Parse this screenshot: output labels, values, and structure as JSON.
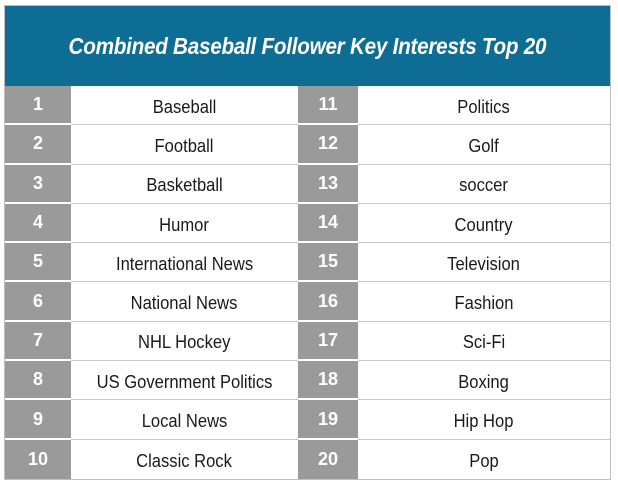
{
  "title": "Combined Baseball Follower Key Interests Top 20",
  "colors": {
    "header_bg": "#0d6d95",
    "number_bg": "#9a9a9a"
  },
  "rows": [
    {
      "left_rank": "1",
      "left_label": "Baseball",
      "right_rank": "11",
      "right_label": "Politics"
    },
    {
      "left_rank": "2",
      "left_label": "Football",
      "right_rank": "12",
      "right_label": "Golf"
    },
    {
      "left_rank": "3",
      "left_label": "Basketball",
      "right_rank": "13",
      "right_label": "soccer"
    },
    {
      "left_rank": "4",
      "left_label": "Humor",
      "right_rank": "14",
      "right_label": "Country"
    },
    {
      "left_rank": "5",
      "left_label": "International News",
      "right_rank": "15",
      "right_label": "Television"
    },
    {
      "left_rank": "6",
      "left_label": "National News",
      "right_rank": "16",
      "right_label": "Fashion"
    },
    {
      "left_rank": "7",
      "left_label": "NHL Hockey",
      "right_rank": "17",
      "right_label": "Sci-Fi"
    },
    {
      "left_rank": "8",
      "left_label": "US Government Politics",
      "right_rank": "18",
      "right_label": "Boxing"
    },
    {
      "left_rank": "9",
      "left_label": "Local News",
      "right_rank": "19",
      "right_label": "Hip Hop"
    },
    {
      "left_rank": "10",
      "left_label": "Classic Rock",
      "right_rank": "20",
      "right_label": "Pop"
    }
  ]
}
